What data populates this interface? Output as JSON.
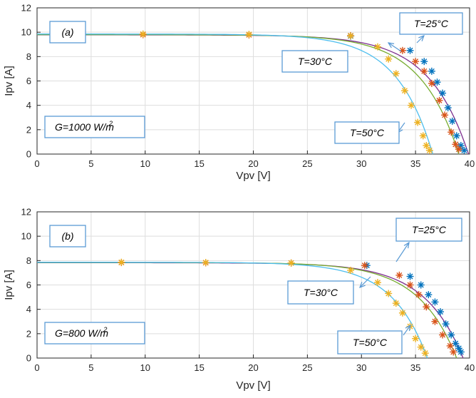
{
  "chart_data": [
    {
      "type": "line",
      "panel_label": "(a)",
      "xlabel": "Vpv [V]",
      "ylabel": "Ipv [A]",
      "xlim": [
        0,
        40
      ],
      "ylim": [
        0,
        12
      ],
      "xticks": [
        "0",
        "5",
        "10",
        "15",
        "20",
        "25",
        "30",
        "35",
        "40"
      ],
      "yticks": [
        "0",
        "2",
        "4",
        "6",
        "8",
        "10",
        "12"
      ],
      "grid": true,
      "irradiance_label": "G=1000 W/m",
      "irradiance_sup": "2",
      "series": [
        {
          "name": "T=25°C",
          "color": "#7e2f8e",
          "marker_color": "#0072bd",
          "isc": 9.78,
          "voc": 39.9,
          "points": [
            [
              29.0,
              9.68
            ],
            [
              34.5,
              8.5
            ],
            [
              35.8,
              7.6
            ],
            [
              36.5,
              6.8
            ],
            [
              37.0,
              5.9
            ],
            [
              37.5,
              5.0
            ],
            [
              38.0,
              3.8
            ],
            [
              38.4,
              2.7
            ],
            [
              38.8,
              1.5
            ],
            [
              39.2,
              0.7
            ],
            [
              39.5,
              0.3
            ]
          ]
        },
        {
          "name": "T=30°C",
          "color": "#77ac30",
          "marker_color": "#d95319",
          "isc": 9.8,
          "voc": 39.0,
          "points": [
            [
              9.8,
              9.8
            ],
            [
              19.6,
              9.78
            ],
            [
              29.0,
              9.72
            ],
            [
              33.8,
              8.5
            ],
            [
              35.0,
              7.6
            ],
            [
              35.8,
              6.8
            ],
            [
              36.5,
              5.8
            ],
            [
              37.2,
              4.4
            ],
            [
              37.7,
              3.2
            ],
            [
              38.3,
              1.8
            ],
            [
              38.7,
              0.8
            ],
            [
              39.0,
              0.4
            ]
          ]
        },
        {
          "name": "T=50°C",
          "color": "#4dbeee",
          "marker_color": "#edb120",
          "isc": 9.85,
          "voc": 36.6,
          "points": [
            [
              9.8,
              9.85
            ],
            [
              19.6,
              9.82
            ],
            [
              29.0,
              9.7
            ],
            [
              31.5,
              8.8
            ],
            [
              32.5,
              7.8
            ],
            [
              33.2,
              6.6
            ],
            [
              34.0,
              5.2
            ],
            [
              34.6,
              4.0
            ],
            [
              35.2,
              2.6
            ],
            [
              35.7,
              1.5
            ],
            [
              36.0,
              0.7
            ],
            [
              36.3,
              0.3
            ]
          ]
        }
      ],
      "annotations": [
        "T=25°C",
        "T=30°C",
        "T=50°C"
      ]
    },
    {
      "type": "line",
      "panel_label": "(b)",
      "xlabel": "Vpv [V]",
      "ylabel": "Ipv [A]",
      "xlim": [
        0,
        40
      ],
      "ylim": [
        0,
        12
      ],
      "xticks": [
        "0",
        "5",
        "10",
        "15",
        "20",
        "25",
        "30",
        "35",
        "40"
      ],
      "yticks": [
        "0",
        "2",
        "4",
        "6",
        "8",
        "10",
        "12"
      ],
      "grid": true,
      "irradiance_label": "G=800 W/m",
      "irradiance_sup": "2",
      "series": [
        {
          "name": "T=25°C",
          "color": "#7e2f8e",
          "marker_color": "#0072bd",
          "isc": 7.82,
          "voc": 39.4,
          "points": [
            [
              30.5,
              7.6
            ],
            [
              34.5,
              6.7
            ],
            [
              35.5,
              6.0
            ],
            [
              36.2,
              5.2
            ],
            [
              36.8,
              4.6
            ],
            [
              37.3,
              3.8
            ],
            [
              37.8,
              2.8
            ],
            [
              38.3,
              1.9
            ],
            [
              38.7,
              1.2
            ],
            [
              39.0,
              0.8
            ],
            [
              39.2,
              0.5
            ]
          ]
        },
        {
          "name": "T=30°C",
          "color": "#77ac30",
          "marker_color": "#d95319",
          "isc": 7.84,
          "voc": 38.8,
          "points": [
            [
              7.8,
              7.84
            ],
            [
              15.6,
              7.82
            ],
            [
              23.5,
              7.8
            ],
            [
              30.3,
              7.6
            ],
            [
              33.5,
              6.8
            ],
            [
              34.5,
              6.0
            ],
            [
              35.3,
              5.2
            ],
            [
              36.0,
              4.2
            ],
            [
              36.8,
              3.0
            ],
            [
              37.5,
              1.9
            ],
            [
              38.2,
              1.0
            ],
            [
              38.5,
              0.5
            ]
          ]
        },
        {
          "name": "T=50°C",
          "color": "#4dbeee",
          "marker_color": "#edb120",
          "isc": 7.86,
          "voc": 36.1,
          "points": [
            [
              7.8,
              7.86
            ],
            [
              15.6,
              7.84
            ],
            [
              23.5,
              7.8
            ],
            [
              29.0,
              7.2
            ],
            [
              31.5,
              6.2
            ],
            [
              32.5,
              5.3
            ],
            [
              33.2,
              4.5
            ],
            [
              33.8,
              3.7
            ],
            [
              34.5,
              2.6
            ],
            [
              35.0,
              1.6
            ],
            [
              35.5,
              0.9
            ],
            [
              35.9,
              0.4
            ]
          ]
        }
      ],
      "annotations": [
        "T=25°C",
        "T=30°C",
        "T=50°C"
      ]
    }
  ]
}
